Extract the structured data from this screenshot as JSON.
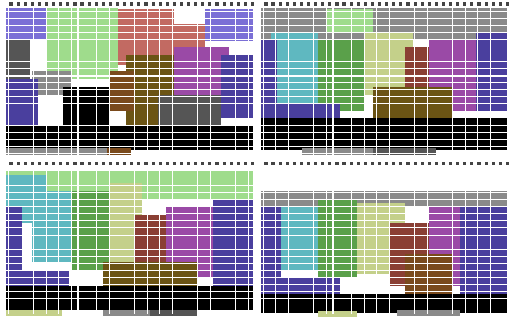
{
  "palette": {
    "purple_blue": "#4a3f9e",
    "lavender": "#7b6fd6",
    "teal": "#5fb8c0",
    "light_green": "#9fdc8c",
    "green": "#5aa04a",
    "olive_light": "#c4d08a",
    "salmon": "#c26a62",
    "brown_red": "#8a3f34",
    "brown": "#7a4a1c",
    "olive_dark": "#6b5414",
    "magenta": "#9a4aa6",
    "gray": "#8a8a8a",
    "dark_gray": "#555555",
    "black": "#000000",
    "white": "#ffffff"
  },
  "panels": [
    {
      "id": "top-left"
    },
    {
      "id": "top-right"
    },
    {
      "id": "bottom-left"
    },
    {
      "id": "bottom-right"
    }
  ]
}
